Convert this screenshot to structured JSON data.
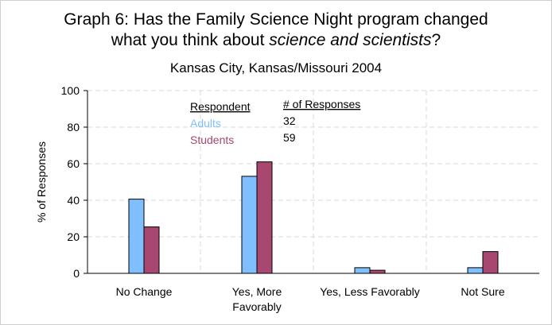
{
  "chart_data": {
    "type": "bar",
    "title_line1": "Graph 6: Has the Family Science Night program changed",
    "title_line2_prefix": "what you think about ",
    "title_line2_emphasis": "science and scientists",
    "title_line2_suffix": "?",
    "subtitle": "Kansas City, Kansas/Missouri 2004",
    "xlabel": "",
    "ylabel": "% of Responses",
    "ylim": [
      0,
      100
    ],
    "yticks": [
      0,
      20,
      40,
      60,
      80,
      100
    ],
    "grid": true,
    "categories": [
      [
        "No Change"
      ],
      [
        "Yes, More",
        "Favorably"
      ],
      [
        "Yes, Less Favorably"
      ],
      [
        "Not Sure"
      ]
    ],
    "series": [
      {
        "name": "Adults",
        "responses": "32",
        "color": "#7fbfff",
        "values": [
          40.6,
          53.1,
          3.1,
          3.1
        ]
      },
      {
        "name": "Students",
        "responses": "59",
        "color": "#a8476f",
        "values": [
          25.4,
          61.0,
          1.7,
          11.9
        ]
      }
    ],
    "legend": {
      "header_respondent": "Respondent",
      "header_responses": "# of Responses",
      "placement": "top-center"
    }
  }
}
